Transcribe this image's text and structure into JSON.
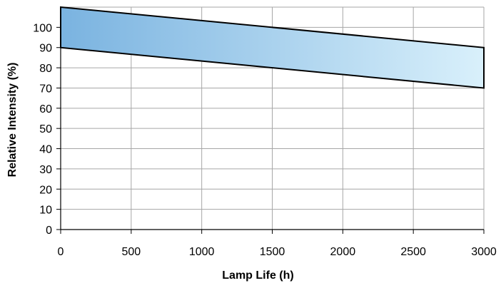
{
  "chart_data": {
    "type": "area",
    "xlabel": "Lamp Life (h)",
    "ylabel": "Relative Intensity (%)",
    "xlim": [
      0,
      3000
    ],
    "ylim": [
      0,
      110
    ],
    "x_ticks": [
      0,
      500,
      1000,
      1500,
      2000,
      2500,
      3000
    ],
    "y_ticks": [
      0,
      10,
      20,
      30,
      40,
      50,
      60,
      70,
      80,
      90,
      100
    ],
    "grid": true,
    "band": {
      "x": [
        0,
        3000
      ],
      "upper": [
        110,
        90
      ],
      "lower": [
        90,
        70
      ]
    },
    "colors": {
      "band_start": "#7ab3e0",
      "band_end": "#d9f0fb",
      "band_edge": "#000000",
      "grid": "#a6a6a6"
    }
  }
}
